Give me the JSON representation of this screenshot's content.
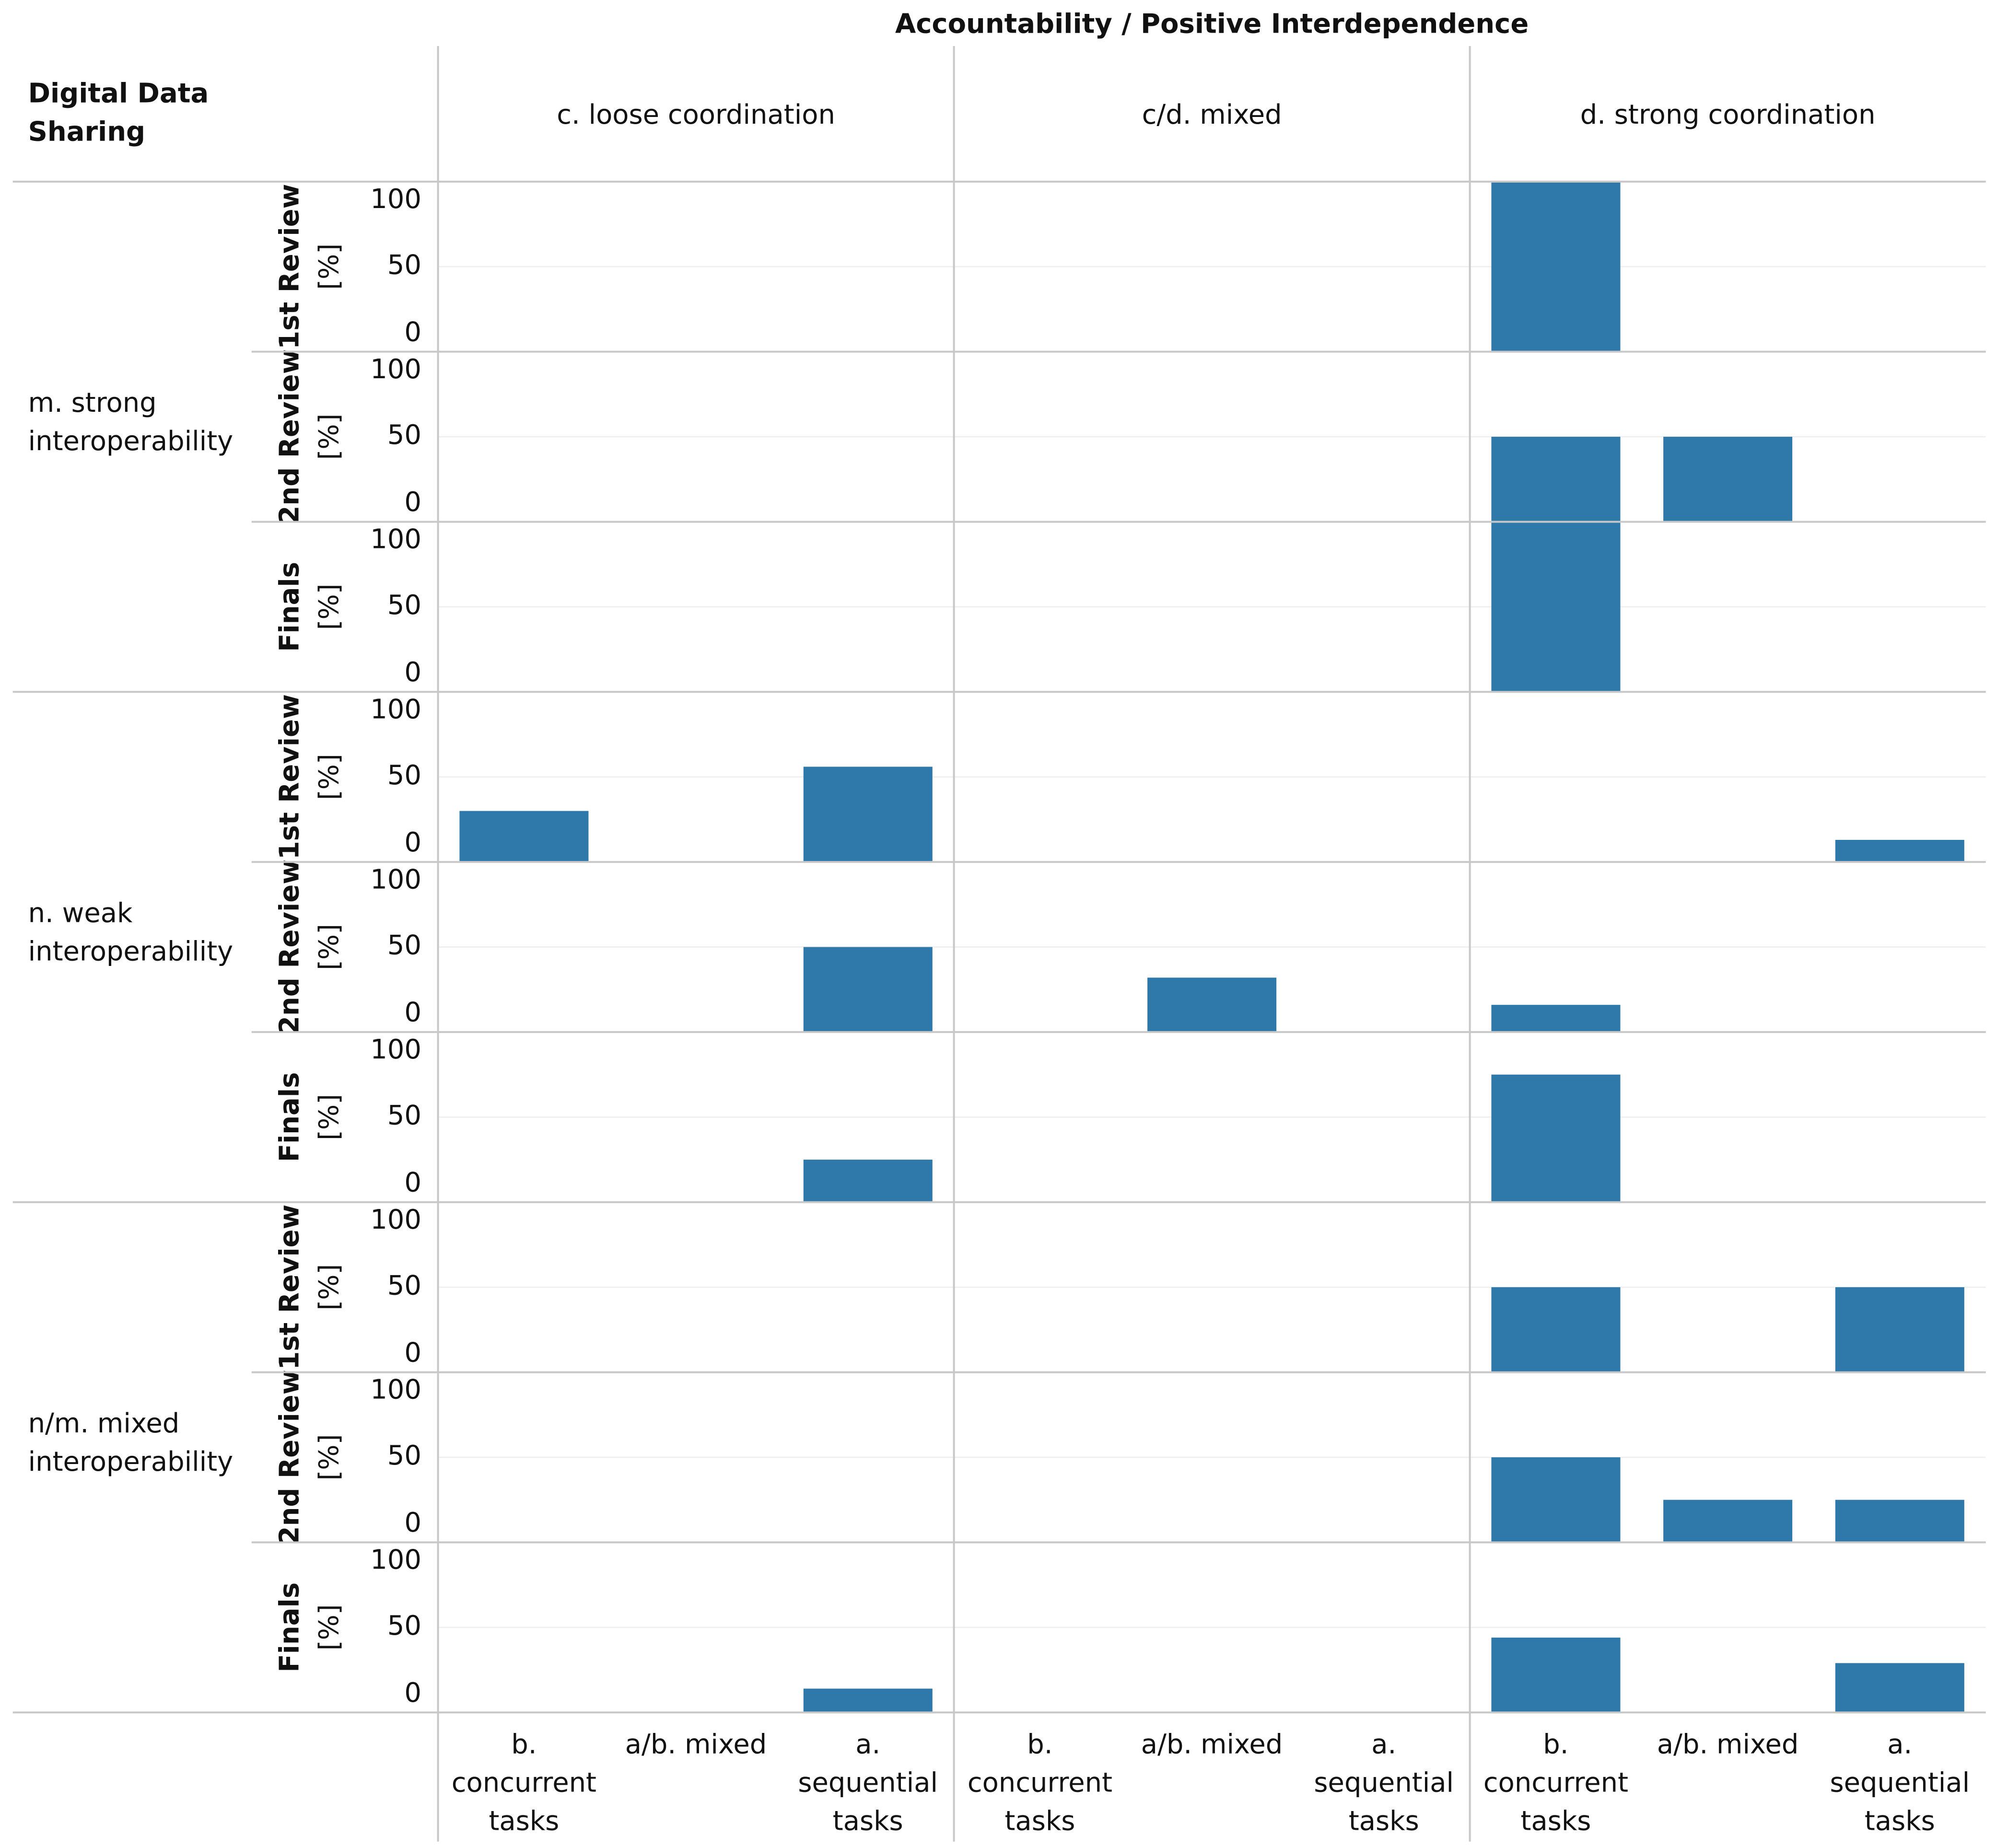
{
  "chart_data": {
    "type": "bar",
    "title": "Accountability / Positive Interdependence",
    "row_header": "Digital Data Sharing",
    "columns": [
      "c. loose coordination",
      "c/d. mixed",
      "d. strong coordination"
    ],
    "rows": [
      "m. strong interoperability",
      "n. weak interoperability",
      "n/m. mixed interoperability"
    ],
    "measures": [
      {
        "name": "1st Review",
        "unit": "[%]"
      },
      {
        "name": "2nd Review",
        "unit": "[%]"
      },
      {
        "name": "Finals",
        "unit": "[%]"
      }
    ],
    "categories": [
      "b. concurrent tasks",
      "a/b. mixed",
      "a. sequential tasks"
    ],
    "color": "#2e78aa",
    "ylim": [
      0,
      100
    ],
    "yticks": [
      0,
      50,
      100
    ],
    "grid": true,
    "values": [
      [
        [
          [
            null,
            null,
            null
          ],
          [
            null,
            null,
            null
          ],
          [
            100,
            null,
            null
          ]
        ],
        [
          [
            null,
            null,
            null
          ],
          [
            null,
            null,
            null
          ],
          [
            50,
            50,
            null
          ]
        ],
        [
          [
            null,
            null,
            null
          ],
          [
            null,
            null,
            null
          ],
          [
            100,
            null,
            null
          ]
        ]
      ],
      [
        [
          [
            30,
            null,
            56
          ],
          [
            null,
            null,
            null
          ],
          [
            null,
            null,
            13
          ]
        ],
        [
          [
            null,
            null,
            50
          ],
          [
            null,
            32,
            null
          ],
          [
            16,
            null,
            null
          ]
        ],
        [
          [
            null,
            null,
            25
          ],
          [
            null,
            null,
            null
          ],
          [
            75,
            null,
            null
          ]
        ]
      ],
      [
        [
          [
            null,
            null,
            null
          ],
          [
            null,
            null,
            null
          ],
          [
            50,
            null,
            50
          ]
        ],
        [
          [
            null,
            null,
            null
          ],
          [
            null,
            null,
            null
          ],
          [
            50,
            25,
            25
          ]
        ],
        [
          [
            null,
            null,
            14
          ],
          [
            null,
            null,
            null
          ],
          [
            44,
            null,
            29
          ]
        ]
      ]
    ]
  }
}
